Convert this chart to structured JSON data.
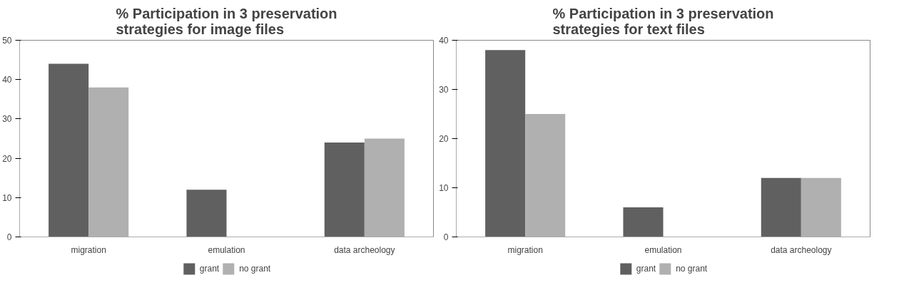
{
  "chart_data": [
    {
      "type": "bar",
      "title": "% Participation in 3 preservation\nstrategies for image files",
      "categories": [
        "migration",
        "emulation",
        "data archeology"
      ],
      "series": [
        {
          "name": "grant",
          "color": "#606060",
          "values": [
            44,
            12,
            24
          ]
        },
        {
          "name": "no grant",
          "color": "#b0b0b0",
          "values": [
            38,
            0,
            25
          ]
        }
      ],
      "ylim": [
        0,
        50
      ],
      "yticks": [
        0,
        10,
        20,
        30,
        40,
        50
      ],
      "legend": "bottom",
      "grid": false
    },
    {
      "type": "bar",
      "title": "% Participation in 3 preservation\nstrategies for text files",
      "categories": [
        "migration",
        "emulation",
        "data archeology"
      ],
      "series": [
        {
          "name": "grant",
          "color": "#606060",
          "values": [
            38,
            6,
            12
          ]
        },
        {
          "name": "no grant",
          "color": "#b0b0b0",
          "values": [
            25,
            0,
            12
          ]
        }
      ],
      "ylim": [
        0,
        40
      ],
      "yticks": [
        0,
        10,
        20,
        30,
        40
      ],
      "legend": "bottom",
      "grid": false
    }
  ]
}
